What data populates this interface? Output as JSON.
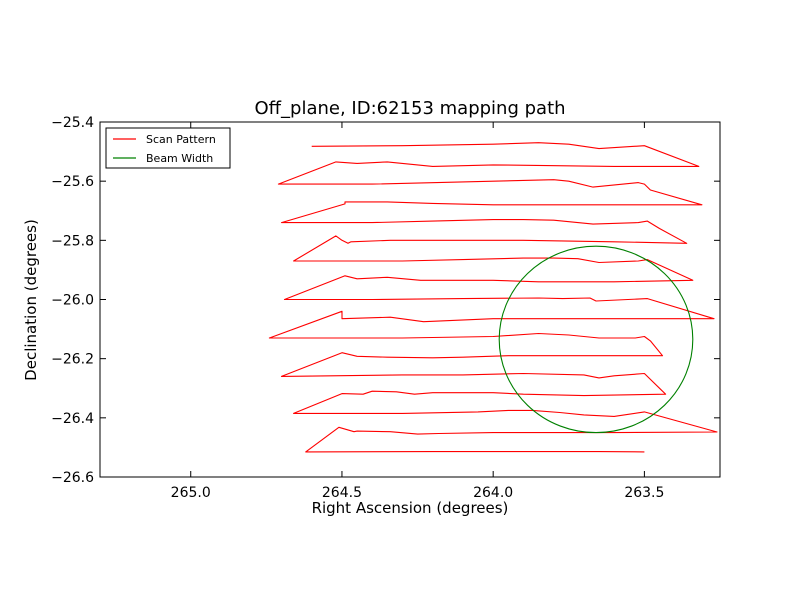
{
  "chart_data": {
    "type": "line",
    "title": "Off_plane, ID:62153 mapping path",
    "xlabel": "Right Ascension (degrees)",
    "ylabel": "Declination (degrees)",
    "xlim": [
      265.3,
      263.25
    ],
    "ylim": [
      -26.6,
      -25.4
    ],
    "x_inverted": true,
    "grid": false,
    "legend_position": "top-left",
    "xticks": [
      {
        "value": 265.0,
        "label": "265.0"
      },
      {
        "value": 264.5,
        "label": "264.5"
      },
      {
        "value": 264.0,
        "label": "264.0"
      },
      {
        "value": 263.5,
        "label": "263.5"
      }
    ],
    "yticks": [
      {
        "value": -25.4,
        "label": "−25.4"
      },
      {
        "value": -25.6,
        "label": "−25.6"
      },
      {
        "value": -25.8,
        "label": "−25.8"
      },
      {
        "value": -26.0,
        "label": "−26.0"
      },
      {
        "value": -26.2,
        "label": "−26.2"
      },
      {
        "value": -26.4,
        "label": "−26.4"
      },
      {
        "value": -26.6,
        "label": "−26.6"
      }
    ],
    "series": [
      {
        "name": "Scan Pattern",
        "color": "#ff0000",
        "kind": "path",
        "points": [
          [
            264.6,
            -25.482
          ],
          [
            264.3,
            -25.48
          ],
          [
            264.0,
            -25.475
          ],
          [
            263.85,
            -25.47
          ],
          [
            263.75,
            -25.475
          ],
          [
            263.65,
            -25.49
          ],
          [
            263.5,
            -25.48
          ],
          [
            263.32,
            -25.55
          ],
          [
            263.6,
            -25.55
          ],
          [
            264.0,
            -25.545
          ],
          [
            264.2,
            -25.55
          ],
          [
            264.35,
            -25.535
          ],
          [
            264.45,
            -25.54
          ],
          [
            264.52,
            -25.535
          ],
          [
            264.71,
            -25.61
          ],
          [
            264.4,
            -25.61
          ],
          [
            264.0,
            -25.6
          ],
          [
            263.8,
            -25.595
          ],
          [
            263.75,
            -25.6
          ],
          [
            263.67,
            -25.62
          ],
          [
            263.52,
            -25.605
          ],
          [
            263.5,
            -25.61
          ],
          [
            263.48,
            -25.63
          ],
          [
            263.31,
            -25.68
          ],
          [
            263.7,
            -25.68
          ],
          [
            264.0,
            -25.68
          ],
          [
            264.2,
            -25.675
          ],
          [
            264.35,
            -25.67
          ],
          [
            264.49,
            -25.67
          ],
          [
            264.49,
            -25.677
          ],
          [
            264.7,
            -25.74
          ],
          [
            264.4,
            -25.74
          ],
          [
            264.2,
            -25.735
          ],
          [
            264.0,
            -25.73
          ],
          [
            263.9,
            -25.73
          ],
          [
            263.8,
            -25.732
          ],
          [
            263.67,
            -25.745
          ],
          [
            263.52,
            -25.74
          ],
          [
            263.49,
            -25.735
          ],
          [
            263.45,
            -25.76
          ],
          [
            263.36,
            -25.81
          ],
          [
            263.6,
            -25.805
          ],
          [
            263.9,
            -25.8
          ],
          [
            264.1,
            -25.8
          ],
          [
            264.3,
            -25.8
          ],
          [
            264.34,
            -25.8
          ],
          [
            264.47,
            -25.805
          ],
          [
            264.48,
            -25.81
          ],
          [
            264.5,
            -25.8
          ],
          [
            264.52,
            -25.785
          ],
          [
            264.66,
            -25.87
          ],
          [
            264.3,
            -25.87
          ],
          [
            264.1,
            -25.865
          ],
          [
            263.9,
            -25.86
          ],
          [
            263.8,
            -25.86
          ],
          [
            263.72,
            -25.862
          ],
          [
            263.65,
            -25.875
          ],
          [
            263.52,
            -25.87
          ],
          [
            263.49,
            -25.865
          ],
          [
            263.34,
            -25.935
          ],
          [
            263.6,
            -25.94
          ],
          [
            263.85,
            -25.94
          ],
          [
            264.0,
            -25.935
          ],
          [
            264.24,
            -25.935
          ],
          [
            264.35,
            -25.925
          ],
          [
            264.45,
            -25.93
          ],
          [
            264.49,
            -25.92
          ],
          [
            264.69,
            -26.0
          ],
          [
            264.4,
            -26.0
          ],
          [
            264.1,
            -25.997
          ],
          [
            263.85,
            -25.995
          ],
          [
            263.77,
            -25.997
          ],
          [
            263.68,
            -25.995
          ],
          [
            263.67,
            -26.0
          ],
          [
            263.66,
            -26.005
          ],
          [
            263.49,
            -25.997
          ],
          [
            263.27,
            -26.065
          ],
          [
            263.6,
            -26.065
          ],
          [
            264.0,
            -26.065
          ],
          [
            264.23,
            -26.075
          ],
          [
            264.34,
            -26.06
          ],
          [
            264.5,
            -26.065
          ],
          [
            264.5,
            -26.04
          ],
          [
            264.74,
            -26.13
          ],
          [
            264.3,
            -26.13
          ],
          [
            264.0,
            -26.125
          ],
          [
            263.85,
            -26.115
          ],
          [
            263.75,
            -26.12
          ],
          [
            263.65,
            -26.13
          ],
          [
            263.53,
            -26.13
          ],
          [
            263.5,
            -26.125
          ],
          [
            263.48,
            -26.14
          ],
          [
            263.44,
            -26.19
          ],
          [
            263.7,
            -26.19
          ],
          [
            263.95,
            -26.19
          ],
          [
            264.1,
            -26.195
          ],
          [
            264.2,
            -26.197
          ],
          [
            264.35,
            -26.195
          ],
          [
            264.45,
            -26.192
          ],
          [
            264.5,
            -26.18
          ],
          [
            264.7,
            -26.26
          ],
          [
            264.3,
            -26.255
          ],
          [
            264.1,
            -26.255
          ],
          [
            263.9,
            -26.25
          ],
          [
            263.7,
            -26.255
          ],
          [
            263.65,
            -26.265
          ],
          [
            263.6,
            -26.258
          ],
          [
            263.5,
            -26.25
          ],
          [
            263.43,
            -26.32
          ],
          [
            263.7,
            -26.325
          ],
          [
            263.9,
            -26.32
          ],
          [
            264.0,
            -26.315
          ],
          [
            264.2,
            -26.315
          ],
          [
            264.26,
            -26.32
          ],
          [
            264.32,
            -26.312
          ],
          [
            264.4,
            -26.31
          ],
          [
            264.43,
            -26.32
          ],
          [
            264.5,
            -26.318
          ],
          [
            264.66,
            -26.385
          ],
          [
            264.3,
            -26.385
          ],
          [
            264.05,
            -26.38
          ],
          [
            263.95,
            -26.375
          ],
          [
            263.87,
            -26.375
          ],
          [
            263.78,
            -26.382
          ],
          [
            263.7,
            -26.39
          ],
          [
            263.6,
            -26.395
          ],
          [
            263.5,
            -26.38
          ],
          [
            263.26,
            -26.448
          ],
          [
            263.6,
            -26.45
          ],
          [
            264.0,
            -26.45
          ],
          [
            264.18,
            -26.453
          ],
          [
            264.25,
            -26.455
          ],
          [
            264.34,
            -26.447
          ],
          [
            264.45,
            -26.445
          ],
          [
            264.46,
            -26.447
          ],
          [
            264.51,
            -26.432
          ],
          [
            264.62,
            -26.515
          ],
          [
            264.2,
            -26.514
          ],
          [
            263.9,
            -26.514
          ],
          [
            263.65,
            -26.514
          ],
          [
            263.5,
            -26.515
          ]
        ]
      },
      {
        "name": "Beam Width",
        "color": "#008000",
        "kind": "circle",
        "center": [
          263.66,
          -26.135
        ],
        "radius_x": 0.32,
        "radius_y": 0.315
      }
    ]
  },
  "legend": {
    "items": [
      {
        "label": "Scan Pattern",
        "color": "#ff0000"
      },
      {
        "label": "Beam Width",
        "color": "#008000"
      }
    ]
  }
}
